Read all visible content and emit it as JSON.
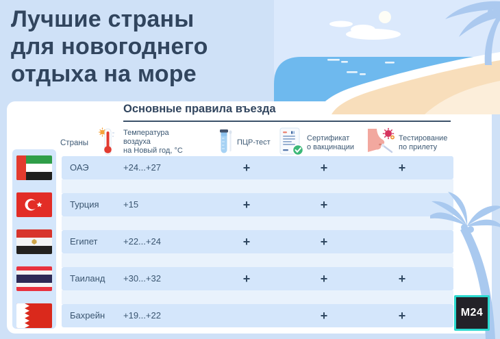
{
  "page_title": {
    "lines": [
      "Лучшие страны",
      "для новогоднего",
      "отдыха на море"
    ]
  },
  "card": {
    "heading": "Основные правила въезда",
    "countries_label": "Страны",
    "columns": [
      {
        "icon": "thermometer-icon",
        "label": "Температура\nвоздуха\nна Новый год, °C"
      },
      {
        "icon": "pcr-test-tube-icon",
        "label": "ПЦР-тест"
      },
      {
        "icon": "vaccination-certificate-icon",
        "label": "Сертификат\nо вакцинации"
      },
      {
        "icon": "nose-swab-test-icon",
        "label": "Тестирование\nпо прилету"
      }
    ]
  },
  "chart_data": {
    "type": "table",
    "title": "Основные правила въезда",
    "columns": [
      "Страны",
      "Температура воздуха на Новый год, °C",
      "ПЦР-тест",
      "Сертификат о вакцинации",
      "Тестирование по прилету"
    ],
    "rows": [
      {
        "country": "ОАЭ",
        "flag": "uae",
        "temperature": "+24...+27",
        "pcr_test": "+",
        "vaccination_certificate": "+",
        "arrival_testing": "+"
      },
      {
        "country": "Турция",
        "flag": "turkey",
        "temperature": "+15",
        "pcr_test": "+",
        "vaccination_certificate": "+",
        "arrival_testing": ""
      },
      {
        "country": "Египет",
        "flag": "egypt",
        "temperature": "+22...+24",
        "pcr_test": "+",
        "vaccination_certificate": "+",
        "arrival_testing": ""
      },
      {
        "country": "Таиланд",
        "flag": "thailand",
        "temperature": "+30...+32",
        "pcr_test": "+",
        "vaccination_certificate": "+",
        "arrival_testing": "+"
      },
      {
        "country": "Бахрейн",
        "flag": "bahrain",
        "temperature": "+19...+22",
        "pcr_test": "",
        "vaccination_certificate": "+",
        "arrival_testing": "+"
      }
    ]
  },
  "logo": {
    "text": "М24"
  },
  "colors": {
    "background": "#cfe1f7",
    "navy_text": "#31455e",
    "row_highlight": "#d4e6fb",
    "row_alt": "#e9f2fc",
    "sea": "#6eb9ee",
    "sky": "#dbe9fc",
    "sand": "#f8debb",
    "palm": "#abc9ef",
    "logo_teal": "#2bd9cf",
    "logo_black": "#232228"
  }
}
